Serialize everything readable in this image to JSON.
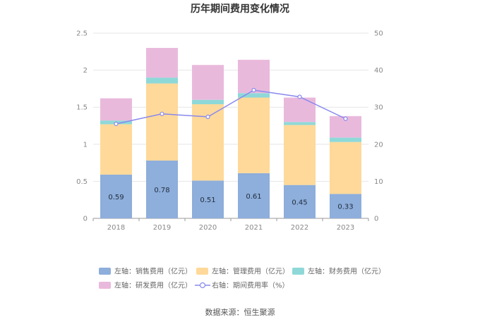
{
  "chart_data": {
    "type": "bar",
    "stacked": true,
    "title": "历年期间费用变化情况",
    "categories": [
      "2018",
      "2019",
      "2020",
      "2021",
      "2022",
      "2023"
    ],
    "series": [
      {
        "name": "左轴：销售费用（亿元）",
        "axis": "left",
        "color": "#8eaedb",
        "values": [
          0.59,
          0.78,
          0.51,
          0.61,
          0.45,
          0.33
        ],
        "labels": [
          "0.59",
          "0.78",
          "0.51",
          "0.61",
          "0.45",
          "0.33"
        ]
      },
      {
        "name": "左轴：管理费用（亿元）",
        "axis": "left",
        "color": "#ffd999",
        "values": [
          0.68,
          1.04,
          1.03,
          1.02,
          0.81,
          0.7
        ]
      },
      {
        "name": "左轴：财务费用（亿元）",
        "axis": "left",
        "color": "#8fd8d8",
        "values": [
          0.05,
          0.08,
          0.06,
          0.06,
          0.04,
          0.06
        ]
      },
      {
        "name": "左轴：研发费用（亿元）",
        "axis": "left",
        "color": "#e9b9dc",
        "values": [
          0.3,
          0.4,
          0.47,
          0.45,
          0.33,
          0.29
        ]
      },
      {
        "name": "右轴：期间费用率（%）",
        "axis": "right",
        "type": "line",
        "color": "#8888ee",
        "values": [
          25.5,
          28.2,
          27.4,
          34.6,
          32.8,
          26.9
        ]
      }
    ],
    "yleft": {
      "min": 0,
      "max": 2.5,
      "ticks": [
        "0",
        "0.5",
        "1",
        "1.5",
        "2",
        "2.5"
      ]
    },
    "yright": {
      "min": 0,
      "max": 50,
      "ticks": [
        "0",
        "10",
        "20",
        "30",
        "40",
        "50"
      ]
    },
    "grid": true,
    "legend_position": "bottom"
  },
  "source": "数据来源：恒生聚源"
}
